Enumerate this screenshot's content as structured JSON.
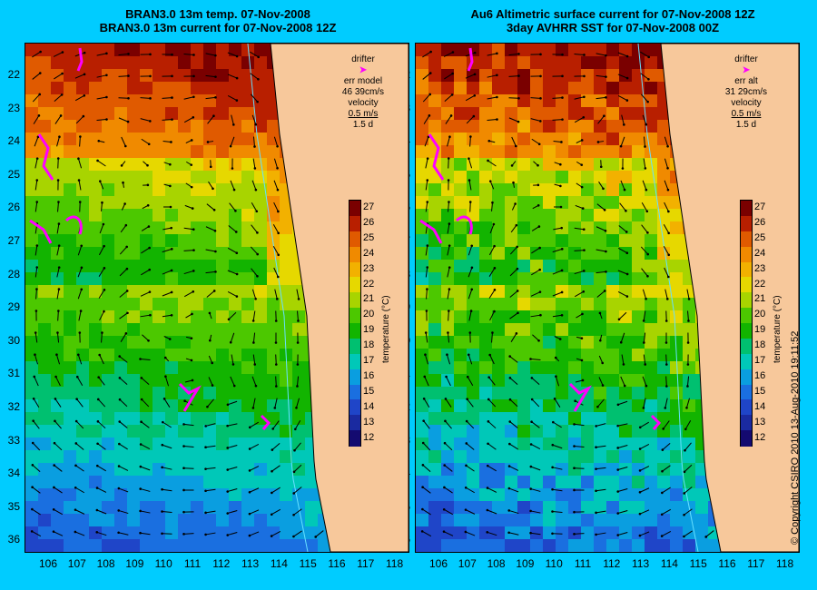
{
  "left_panel": {
    "title_line1": "BRAN3.0 13m temp. 07-Nov-2008",
    "title_line2": "BRAN3.0 13m current for 07-Nov-2008 12Z",
    "legend": {
      "drifter_label": "drifter",
      "err_label": "err model",
      "err_value": "46 39cm/s",
      "velocity_label": "velocity",
      "velocity_value": "0.5 m/s",
      "duration": "1.5 d"
    }
  },
  "right_panel": {
    "title_line1": "Au6 Altimetric surface current for 07-Nov-2008 12Z",
    "title_line2": "3day AVHRR SST for 07-Nov-2008 00Z",
    "legend": {
      "drifter_label": "drifter",
      "err_label": "err alt",
      "err_value": "31 29cm/s",
      "velocity_label": "velocity",
      "velocity_value": "0.5 m/s",
      "duration": "1.5 d"
    }
  },
  "latitude_ticks": [
    "22",
    "23",
    "24",
    "25",
    "26",
    "27",
    "28",
    "29",
    "30",
    "31",
    "32",
    "33",
    "34",
    "35",
    "36"
  ],
  "longitude_ticks": [
    "106",
    "107",
    "108",
    "109",
    "110",
    "111",
    "112",
    "113",
    "114",
    "115",
    "116",
    "117",
    "118"
  ],
  "colorbar": {
    "title": "temperature (°C)",
    "ticks": [
      "27",
      "26",
      "25",
      "24",
      "23",
      "22",
      "21",
      "20",
      "19",
      "18",
      "17",
      "16",
      "15",
      "14",
      "13",
      "12"
    ],
    "colors": [
      "#7a0000",
      "#b81f00",
      "#e05a00",
      "#f08a00",
      "#f2b100",
      "#e6d800",
      "#a8d400",
      "#4cc800",
      "#12b400",
      "#00c070",
      "#00c8b8",
      "#0a9ee0",
      "#1a6fe0",
      "#1f45c8",
      "#1a2aa0",
      "#140a70"
    ]
  },
  "copyright": "© Copyright CSIRO 2010   13-Aug-2010 19:11:52",
  "colors": {
    "background": "#00ccff",
    "land": "#f7c89b",
    "drifter": "#ff00ff",
    "contour": "#66e0ff"
  }
}
